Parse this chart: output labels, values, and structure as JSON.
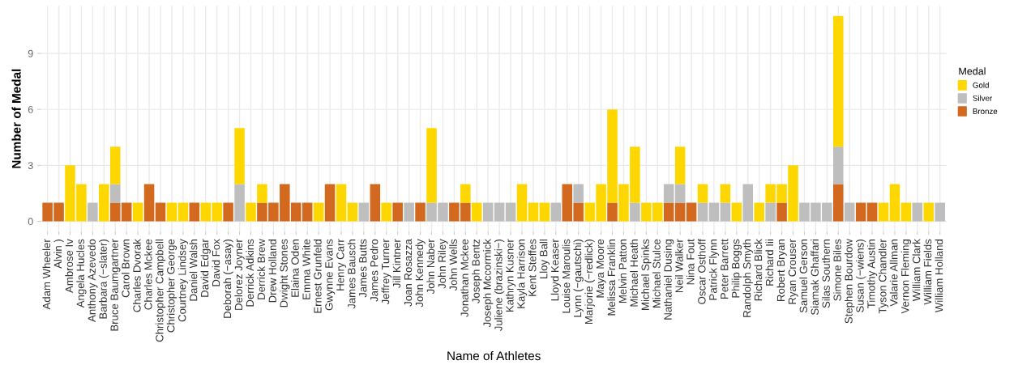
{
  "chart_data": {
    "type": "bar",
    "stacked": true,
    "xlabel": "Name of Athletes",
    "ylabel": "Number of Medal",
    "legend_title": "Medal",
    "legend": "right",
    "grid": true,
    "categories": [
      "Adam Wheeler",
      "Alvin )",
      "Ambrose Iv",
      "Angela Hucles",
      "Anthony Azevedo",
      "Barbara (−slater)",
      "Bruce Baumgartner",
      "Carol Brown",
      "Charles Dvorak",
      "Charles Mckee",
      "Christopher Campbell",
      "Christopher George",
      "Courtney Lindsey",
      "Daniel Walsh",
      "David Edgar",
      "David Fox",
      "Deborah (−asay)",
      "Delorez Joyner",
      "Derrick Adkins",
      "Derrick Brew",
      "Drew Holland",
      "Dwight Stones",
      "Elaina Oden",
      "Emma White",
      "Ernest Grunfeld",
      "Gwynne Evans",
      "Henry Carr",
      "James Bausch",
      "James Butts",
      "James Pedro",
      "Jeffrey Turner",
      "Jill Kintner",
      "Joan Rosazza",
      "John Kennedy",
      "John Naber",
      "John Riley",
      "John Wells",
      "Jonathan Mckee",
      "Joseph Bentz",
      "Joseph Mccormick",
      "Juliene (brazinski−)",
      "Kathryn Kusner",
      "Kayla Harrison",
      "Kent Steffes",
      "Lloy Ball",
      "Lloyd Keaser",
      "Louise Maroulis",
      "Lynn (−gautschi)",
      "Marjorie (−redlick)",
      "Maya Moore",
      "Melissa Franklin",
      "Melvin Patton",
      "Michael Heath",
      "Michael Spinks",
      "Michael Stulce",
      "Nathaniel Dusing",
      "Neil Walker",
      "Nina Fout",
      "Oscar Osthoff",
      "Patrick Flynn",
      "Peter Barrett",
      "Philip Boggs",
      "Randolph Smyth",
      "Richard Blick",
      "Richard Iii",
      "Robert Bryan",
      "Ryan Crouser",
      "Samuel Gerson",
      "Siamak Ghaffari",
      "Silas Southern",
      "Simone Biles",
      "Stephen Bourdow",
      "Susan (−wiens)",
      "Timothy Austin",
      "Tyson Chandler",
      "Valarie Allman",
      "Vernon Fleming",
      "William Clark",
      "William Fields",
      "William Holland"
    ],
    "series": [
      {
        "name": "Bronze",
        "color": "#d2691e",
        "values": [
          1,
          1,
          0,
          0,
          0,
          0,
          1,
          1,
          0,
          2,
          1,
          0,
          0,
          1,
          0,
          0,
          1,
          0,
          0,
          1,
          1,
          2,
          1,
          1,
          0,
          2,
          0,
          0,
          0,
          2,
          0,
          1,
          0,
          1,
          0,
          0,
          1,
          1,
          0,
          0,
          0,
          0,
          0,
          0,
          0,
          0,
          2,
          1,
          0,
          0,
          1,
          0,
          0,
          0,
          0,
          1,
          1,
          1,
          0,
          0,
          0,
          0,
          0,
          0,
          0,
          1,
          0,
          0,
          0,
          0,
          2,
          0,
          1,
          1,
          0,
          0,
          0,
          0,
          0,
          0
        ]
      },
      {
        "name": "Silver",
        "color": "#bebebe",
        "values": [
          0,
          0,
          0,
          0,
          1,
          0,
          1,
          0,
          0,
          0,
          0,
          0,
          0,
          0,
          0,
          0,
          0,
          2,
          0,
          0,
          0,
          0,
          0,
          0,
          0,
          0,
          0,
          0,
          1,
          0,
          0,
          0,
          1,
          0,
          1,
          1,
          0,
          0,
          0,
          1,
          1,
          1,
          0,
          0,
          0,
          1,
          0,
          1,
          0,
          0,
          0,
          0,
          1,
          0,
          0,
          1,
          1,
          0,
          1,
          1,
          1,
          0,
          2,
          0,
          1,
          0,
          0,
          1,
          1,
          1,
          2,
          1,
          0,
          0,
          0,
          0,
          0,
          1,
          0,
          1
        ]
      },
      {
        "name": "Gold",
        "color": "#ffd700",
        "values": [
          0,
          0,
          3,
          2,
          0,
          2,
          2,
          0,
          1,
          0,
          0,
          1,
          1,
          0,
          1,
          1,
          0,
          3,
          1,
          1,
          0,
          0,
          0,
          0,
          1,
          0,
          2,
          1,
          0,
          0,
          1,
          0,
          0,
          0,
          4,
          0,
          0,
          1,
          1,
          0,
          0,
          0,
          2,
          1,
          1,
          0,
          0,
          0,
          1,
          2,
          5,
          2,
          3,
          1,
          1,
          0,
          2,
          0,
          1,
          0,
          1,
          1,
          0,
          1,
          1,
          1,
          3,
          0,
          0,
          0,
          7,
          0,
          0,
          0,
          1,
          2,
          1,
          0,
          1,
          0
        ]
      }
    ],
    "ylim": [
      -0.55,
      11.55
    ],
    "yticks": [
      0,
      3,
      6,
      9
    ]
  }
}
